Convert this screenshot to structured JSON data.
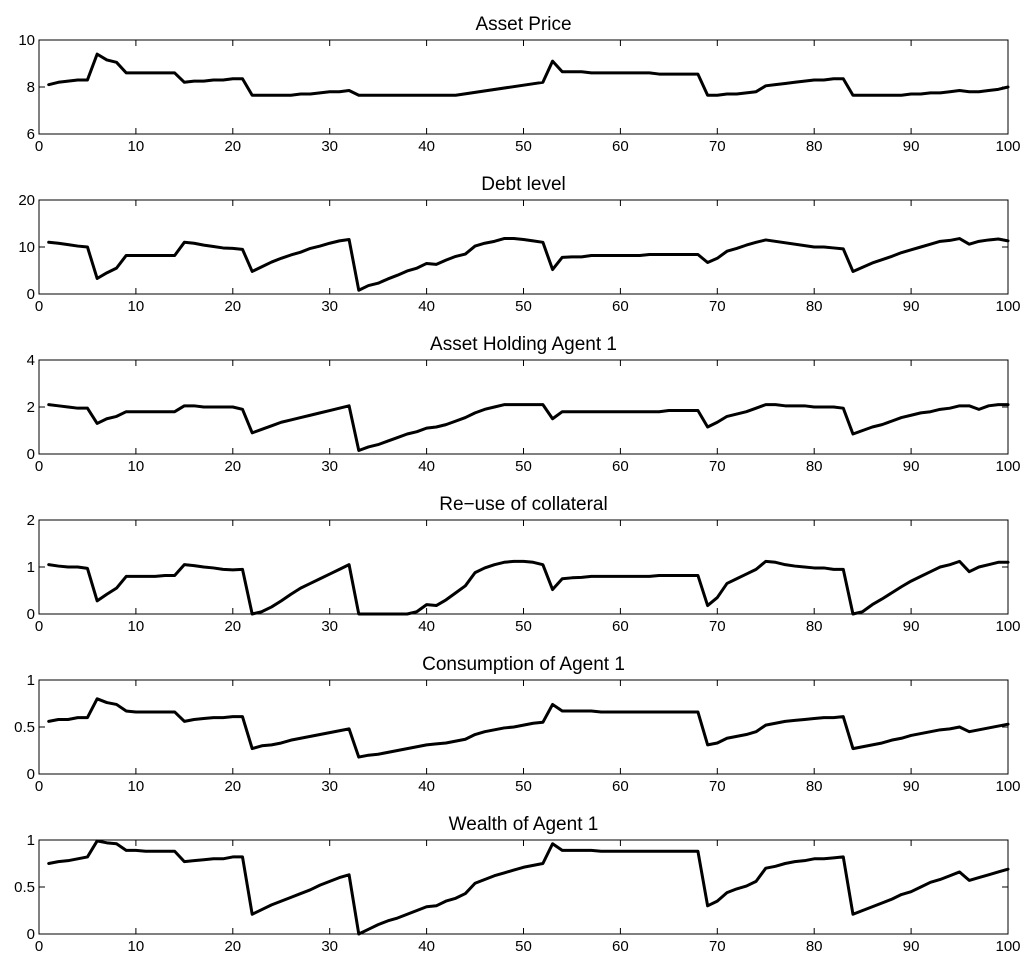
{
  "chart_data": [
    {
      "type": "line",
      "title": "Asset Price",
      "xlim": [
        0,
        100
      ],
      "ylim": [
        6,
        10
      ],
      "xticks": [
        0,
        10,
        20,
        30,
        40,
        50,
        60,
        70,
        80,
        90,
        100
      ],
      "yticks": [
        6,
        8,
        10
      ],
      "grid": false,
      "series": [
        {
          "x": [
            1,
            2,
            3,
            4,
            5,
            6,
            7,
            8,
            9,
            10,
            14,
            15,
            16,
            17,
            18,
            19,
            20,
            21,
            22,
            26,
            27,
            28,
            29,
            30,
            31,
            32,
            33,
            43,
            52,
            53,
            54,
            55,
            56,
            57,
            63,
            64,
            68,
            69,
            70,
            71,
            72,
            73,
            74,
            75,
            76,
            77,
            78,
            79,
            80,
            81,
            82,
            83,
            84,
            89,
            90,
            91,
            92,
            93,
            94,
            95,
            96,
            97,
            98,
            99,
            100
          ],
          "y": [
            8.1,
            8.2,
            8.25,
            8.3,
            8.3,
            9.4,
            9.15,
            9.05,
            8.6,
            8.6,
            8.6,
            8.2,
            8.25,
            8.25,
            8.3,
            8.3,
            8.35,
            8.35,
            7.65,
            7.65,
            7.7,
            7.7,
            7.75,
            7.8,
            7.8,
            7.85,
            7.65,
            7.65,
            8.2,
            9.1,
            8.65,
            8.65,
            8.65,
            8.6,
            8.6,
            8.55,
            8.55,
            7.65,
            7.65,
            7.7,
            7.7,
            7.75,
            7.8,
            8.05,
            8.1,
            8.15,
            8.2,
            8.25,
            8.3,
            8.3,
            8.35,
            8.35,
            7.65,
            7.65,
            7.7,
            7.7,
            7.75,
            7.75,
            7.8,
            7.85,
            7.8,
            7.8,
            7.85,
            7.9,
            8.0
          ]
        }
      ]
    },
    {
      "type": "line",
      "title": "Debt level",
      "xlim": [
        0,
        100
      ],
      "ylim": [
        0,
        20
      ],
      "xticks": [
        0,
        10,
        20,
        30,
        40,
        50,
        60,
        70,
        80,
        90,
        100
      ],
      "yticks": [
        0,
        10,
        20
      ],
      "grid": false,
      "series": [
        {
          "x": [
            1,
            2,
            3,
            4,
            5,
            6,
            7,
            8,
            9,
            10,
            14,
            15,
            16,
            17,
            18,
            19,
            20,
            21,
            22,
            23,
            24,
            25,
            26,
            27,
            28,
            29,
            30,
            31,
            32,
            33,
            34,
            35,
            36,
            37,
            38,
            39,
            40,
            41,
            42,
            43,
            44,
            45,
            46,
            47,
            48,
            49,
            50,
            51,
            52,
            53,
            54,
            55,
            56,
            57,
            62,
            63,
            68,
            69,
            70,
            71,
            72,
            73,
            74,
            75,
            80,
            81,
            82,
            83,
            84,
            85,
            86,
            87,
            88,
            89,
            90,
            91,
            92,
            93,
            94,
            95,
            96,
            97,
            98,
            99,
            100
          ],
          "y": [
            11,
            10.8,
            10.5,
            10.2,
            10,
            3.3,
            4.5,
            5.5,
            8.2,
            8.2,
            8.2,
            11,
            10.8,
            10.4,
            10.1,
            9.8,
            9.7,
            9.5,
            4.8,
            5.8,
            6.8,
            7.6,
            8.3,
            8.9,
            9.7,
            10.2,
            10.8,
            11.3,
            11.6,
            0.8,
            1.8,
            2.3,
            3.2,
            4,
            4.9,
            5.5,
            6.5,
            6.3,
            7.2,
            8,
            8.5,
            10.2,
            10.8,
            11.2,
            11.8,
            11.8,
            11.6,
            11.3,
            11,
            5.2,
            7.8,
            7.9,
            7.9,
            8.2,
            8.2,
            8.4,
            8.4,
            6.7,
            7.6,
            9.1,
            9.7,
            10.4,
            11,
            11.5,
            10,
            10,
            9.8,
            9.6,
            4.8,
            5.7,
            6.6,
            7.3,
            8,
            8.8,
            9.4,
            10,
            10.6,
            11.2,
            11.4,
            11.8,
            10.6,
            11.2,
            11.5,
            11.7,
            11.3
          ]
        }
      ]
    },
    {
      "type": "line",
      "title": "Asset Holding Agent 1",
      "xlim": [
        0,
        100
      ],
      "ylim": [
        0,
        4
      ],
      "xticks": [
        0,
        10,
        20,
        30,
        40,
        50,
        60,
        70,
        80,
        90,
        100
      ],
      "yticks": [
        0,
        2,
        4
      ],
      "grid": false,
      "series": [
        {
          "x": [
            1,
            2,
            3,
            4,
            5,
            6,
            7,
            8,
            9,
            10,
            14,
            15,
            16,
            17,
            20,
            21,
            22,
            23,
            24,
            25,
            26,
            27,
            28,
            29,
            30,
            31,
            32,
            33,
            34,
            35,
            36,
            37,
            38,
            39,
            40,
            41,
            42,
            43,
            44,
            45,
            46,
            47,
            48,
            49,
            52,
            53,
            54,
            64,
            65,
            68,
            69,
            70,
            71,
            72,
            73,
            74,
            75,
            76,
            77,
            78,
            79,
            80,
            81,
            82,
            83,
            84,
            85,
            86,
            87,
            88,
            89,
            90,
            91,
            92,
            93,
            94,
            95,
            96,
            97,
            98,
            99,
            100
          ],
          "y": [
            2.1,
            2.05,
            2.0,
            1.95,
            1.95,
            1.3,
            1.5,
            1.6,
            1.8,
            1.8,
            1.8,
            2.05,
            2.05,
            2.0,
            2.0,
            1.9,
            0.9,
            1.05,
            1.2,
            1.35,
            1.45,
            1.55,
            1.65,
            1.75,
            1.85,
            1.95,
            2.05,
            0.15,
            0.3,
            0.4,
            0.55,
            0.7,
            0.85,
            0.95,
            1.1,
            1.15,
            1.25,
            1.4,
            1.55,
            1.75,
            1.9,
            2.0,
            2.1,
            2.1,
            2.1,
            1.5,
            1.8,
            1.8,
            1.85,
            1.85,
            1.15,
            1.35,
            1.6,
            1.7,
            1.8,
            1.95,
            2.1,
            2.1,
            2.05,
            2.05,
            2.05,
            2.0,
            2.0,
            2.0,
            1.95,
            0.85,
            1.0,
            1.15,
            1.25,
            1.4,
            1.55,
            1.65,
            1.75,
            1.8,
            1.9,
            1.95,
            2.05,
            2.05,
            1.9,
            2.05,
            2.1,
            2.1
          ]
        }
      ]
    },
    {
      "type": "line",
      "title": "Re−use of collateral",
      "xlim": [
        0,
        100
      ],
      "ylim": [
        0,
        2
      ],
      "xticks": [
        0,
        10,
        20,
        30,
        40,
        50,
        60,
        70,
        80,
        90,
        100
      ],
      "yticks": [
        0,
        1,
        2
      ],
      "grid": false,
      "series": [
        {
          "x": [
            1,
            2,
            3,
            4,
            5,
            6,
            7,
            8,
            9,
            10,
            12,
            13,
            14,
            15,
            16,
            17,
            18,
            19,
            20,
            21,
            22,
            23,
            24,
            25,
            26,
            27,
            28,
            29,
            30,
            31,
            32,
            33,
            34,
            38,
            39,
            40,
            41,
            42,
            43,
            44,
            45,
            46,
            47,
            48,
            49,
            50,
            51,
            52,
            53,
            54,
            55,
            56,
            57,
            63,
            64,
            68,
            69,
            70,
            71,
            72,
            73,
            74,
            75,
            76,
            77,
            78,
            79,
            80,
            81,
            82,
            83,
            84,
            85,
            86,
            87,
            88,
            89,
            90,
            91,
            92,
            93,
            94,
            95,
            96,
            97,
            98,
            99,
            100
          ],
          "y": [
            1.05,
            1.02,
            1.0,
            1.0,
            0.97,
            0.28,
            0.42,
            0.55,
            0.8,
            0.8,
            0.8,
            0.82,
            0.82,
            1.05,
            1.03,
            1.0,
            0.98,
            0.95,
            0.94,
            0.95,
            0.0,
            0.05,
            0.15,
            0.28,
            0.42,
            0.55,
            0.65,
            0.75,
            0.85,
            0.95,
            1.05,
            0.0,
            0.0,
            0.0,
            0.05,
            0.2,
            0.18,
            0.3,
            0.45,
            0.6,
            0.88,
            0.98,
            1.05,
            1.1,
            1.12,
            1.12,
            1.1,
            1.05,
            0.52,
            0.75,
            0.77,
            0.78,
            0.8,
            0.8,
            0.82,
            0.82,
            0.18,
            0.35,
            0.65,
            0.75,
            0.85,
            0.95,
            1.12,
            1.1,
            1.05,
            1.02,
            1.0,
            0.98,
            0.98,
            0.95,
            0.95,
            0.0,
            0.05,
            0.2,
            0.32,
            0.45,
            0.58,
            0.7,
            0.8,
            0.9,
            1.0,
            1.05,
            1.12,
            0.9,
            1.0,
            1.05,
            1.1,
            1.1
          ]
        }
      ]
    },
    {
      "type": "line",
      "title": "Consumption of Agent 1",
      "xlim": [
        0,
        100
      ],
      "ylim": [
        0,
        1
      ],
      "xticks": [
        0,
        10,
        20,
        30,
        40,
        50,
        60,
        70,
        80,
        90,
        100
      ],
      "yticks": [
        0,
        0.5,
        1
      ],
      "grid": false,
      "series": [
        {
          "x": [
            1,
            2,
            3,
            4,
            5,
            6,
            7,
            8,
            9,
            10,
            14,
            15,
            16,
            17,
            18,
            19,
            20,
            21,
            22,
            23,
            24,
            25,
            26,
            27,
            28,
            29,
            30,
            31,
            32,
            33,
            34,
            35,
            36,
            37,
            38,
            39,
            40,
            41,
            42,
            43,
            44,
            45,
            46,
            47,
            48,
            49,
            50,
            51,
            52,
            53,
            54,
            57,
            58,
            68,
            69,
            70,
            71,
            72,
            73,
            74,
            75,
            76,
            77,
            78,
            79,
            80,
            81,
            82,
            83,
            84,
            85,
            86,
            87,
            88,
            89,
            90,
            91,
            92,
            93,
            94,
            95,
            96,
            97,
            98,
            99,
            100
          ],
          "y": [
            0.56,
            0.58,
            0.58,
            0.6,
            0.6,
            0.8,
            0.76,
            0.74,
            0.67,
            0.66,
            0.66,
            0.56,
            0.58,
            0.59,
            0.6,
            0.6,
            0.61,
            0.61,
            0.27,
            0.3,
            0.31,
            0.33,
            0.36,
            0.38,
            0.4,
            0.42,
            0.44,
            0.46,
            0.48,
            0.18,
            0.2,
            0.21,
            0.23,
            0.25,
            0.27,
            0.29,
            0.31,
            0.32,
            0.33,
            0.35,
            0.37,
            0.42,
            0.45,
            0.47,
            0.49,
            0.5,
            0.52,
            0.54,
            0.55,
            0.74,
            0.67,
            0.67,
            0.66,
            0.66,
            0.31,
            0.33,
            0.38,
            0.4,
            0.42,
            0.45,
            0.52,
            0.54,
            0.56,
            0.57,
            0.58,
            0.59,
            0.6,
            0.6,
            0.61,
            0.27,
            0.29,
            0.31,
            0.33,
            0.36,
            0.38,
            0.41,
            0.43,
            0.45,
            0.47,
            0.48,
            0.5,
            0.45,
            0.47,
            0.49,
            0.51,
            0.53
          ]
        }
      ]
    },
    {
      "type": "line",
      "title": "Wealth of Agent 1",
      "xlim": [
        0,
        100
      ],
      "ylim": [
        0,
        1
      ],
      "xticks": [
        0,
        10,
        20,
        30,
        40,
        50,
        60,
        70,
        80,
        90,
        100
      ],
      "yticks": [
        0,
        0.5,
        1
      ],
      "grid": false,
      "series": [
        {
          "x": [
            1,
            2,
            3,
            4,
            5,
            6,
            7,
            8,
            9,
            10,
            11,
            14,
            15,
            16,
            17,
            18,
            19,
            20,
            21,
            22,
            23,
            24,
            25,
            26,
            27,
            28,
            29,
            30,
            31,
            32,
            33,
            34,
            35,
            36,
            37,
            38,
            39,
            40,
            41,
            42,
            43,
            44,
            45,
            46,
            47,
            48,
            49,
            50,
            51,
            52,
            53,
            54,
            57,
            58,
            68,
            69,
            70,
            71,
            72,
            73,
            74,
            75,
            76,
            77,
            78,
            79,
            80,
            81,
            82,
            83,
            84,
            85,
            86,
            87,
            88,
            89,
            90,
            91,
            92,
            93,
            94,
            95,
            96,
            97,
            98,
            99,
            100
          ],
          "y": [
            0.75,
            0.77,
            0.78,
            0.8,
            0.82,
            0.99,
            0.97,
            0.96,
            0.89,
            0.89,
            0.88,
            0.88,
            0.77,
            0.78,
            0.79,
            0.8,
            0.8,
            0.82,
            0.82,
            0.21,
            0.26,
            0.31,
            0.35,
            0.39,
            0.43,
            0.47,
            0.52,
            0.56,
            0.6,
            0.63,
            0.0,
            0.05,
            0.1,
            0.14,
            0.17,
            0.21,
            0.25,
            0.29,
            0.3,
            0.35,
            0.38,
            0.43,
            0.54,
            0.58,
            0.62,
            0.65,
            0.68,
            0.71,
            0.73,
            0.75,
            0.96,
            0.89,
            0.89,
            0.88,
            0.88,
            0.3,
            0.35,
            0.44,
            0.48,
            0.51,
            0.56,
            0.7,
            0.72,
            0.75,
            0.77,
            0.78,
            0.8,
            0.8,
            0.81,
            0.82,
            0.21,
            0.25,
            0.29,
            0.33,
            0.37,
            0.42,
            0.45,
            0.5,
            0.55,
            0.58,
            0.62,
            0.66,
            0.57,
            0.6,
            0.63,
            0.66,
            0.69
          ]
        }
      ]
    }
  ]
}
